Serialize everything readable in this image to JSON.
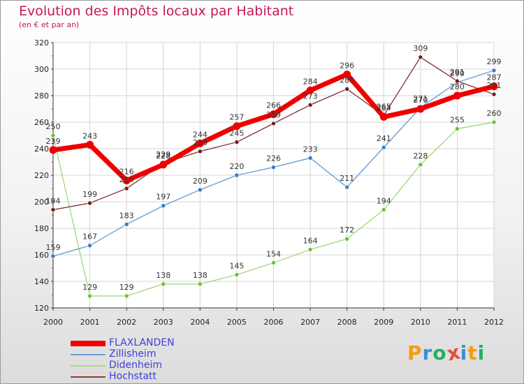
{
  "title": "Evolution des Impôts locaux par Habitant",
  "subtitle": "(en € et par an)",
  "logo": {
    "text": "Proxiti",
    "colors": [
      "#f39c12",
      "#3b8fd6",
      "#27ae60",
      "#e74c3c",
      "#3b8fd6",
      "#f39c12",
      "#27ae60"
    ]
  },
  "chart_data": {
    "type": "line",
    "title": "Evolution des Impôts locaux par Habitant",
    "subtitle": "(en € et par an)",
    "xlabel": "",
    "ylabel": "",
    "x": [
      "2000",
      "2001",
      "2002",
      "2003",
      "2004",
      "2005",
      "2006",
      "2007",
      "2008",
      "2009",
      "2010",
      "2011",
      "2012"
    ],
    "ylim": [
      120,
      320
    ],
    "yticks": [
      "120",
      "140",
      "160",
      "180",
      "200",
      "220",
      "240",
      "260",
      "280",
      "300",
      "320"
    ],
    "grid": true,
    "legend_position": "bottom-left",
    "series": [
      {
        "name": "FLAXLANDEN",
        "values": [
          239,
          243,
          216,
          228,
          244,
          257,
          266,
          284,
          296,
          264,
          270,
          280,
          287
        ],
        "labels": [
          "239",
          "243",
          "216",
          "228",
          "244",
          "257",
          "266",
          "284",
          "296",
          "264",
          "270",
          "280",
          "287"
        ],
        "color": "#ee0000",
        "marker_color": "#ee0000",
        "thick": true
      },
      {
        "name": "Zillisheim",
        "values": [
          159,
          167,
          183,
          197,
          209,
          220,
          226,
          233,
          211,
          241,
          271,
          290,
          299
        ],
        "labels": [
          "159",
          "167",
          "183",
          "197",
          "209",
          "220",
          "226",
          "233",
          "211",
          "241",
          "271",
          "290",
          "299"
        ],
        "color": "#6a9fd4",
        "marker_color": "#3a7cc0",
        "thick": false
      },
      {
        "name": "Didenheim",
        "values": [
          250,
          129,
          129,
          138,
          138,
          145,
          154,
          164,
          172,
          194,
          228,
          255,
          260
        ],
        "labels": [
          "250",
          "129",
          "129",
          "138",
          "138",
          "145",
          "154",
          "164",
          "172",
          "194",
          "228",
          "255",
          "260"
        ],
        "color": "#a6dc80",
        "marker_color": "#6cc03c",
        "thick": false
      },
      {
        "name": "Hochstatt",
        "values": [
          194,
          199,
          210,
          229,
          238,
          245,
          259,
          273,
          285,
          265,
          309,
          291,
          281
        ],
        "labels": [
          "194",
          "199",
          "210",
          "229",
          "238",
          "245",
          "259",
          "273",
          "285",
          "265",
          "309",
          "291",
          "281"
        ],
        "color": "#8b3a3a",
        "marker_color": "#6b1f1f",
        "thick": false
      }
    ]
  }
}
